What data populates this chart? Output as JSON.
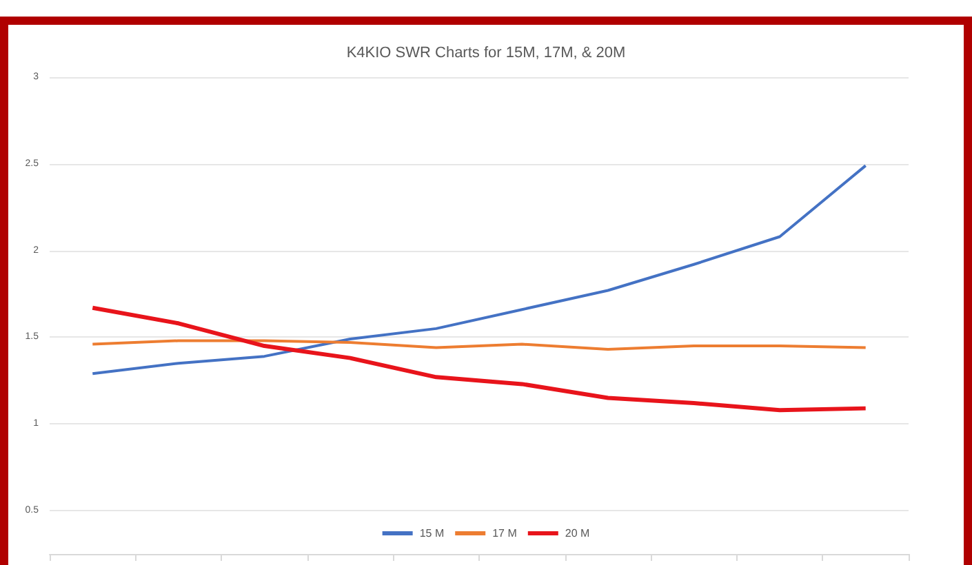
{
  "chart_data": {
    "type": "line",
    "title": "K4KIO SWR Charts for 15M, 17M, & 20M",
    "categories": [
      null,
      null,
      null,
      null,
      null,
      null,
      null,
      null,
      null,
      null
    ],
    "series": [
      {
        "name": "15 M",
        "color": "#4472c4",
        "values": [
          1.29,
          1.35,
          1.39,
          1.49,
          1.55,
          1.66,
          1.77,
          1.92,
          2.08,
          2.49
        ]
      },
      {
        "name": "17 M",
        "color": "#ed7d31",
        "values": [
          1.46,
          1.48,
          1.48,
          1.47,
          1.44,
          1.46,
          1.43,
          1.45,
          1.45,
          1.44
        ]
      },
      {
        "name": "20 M",
        "color": "#e8141b",
        "values": [
          1.67,
          1.58,
          1.45,
          1.38,
          1.27,
          1.23,
          1.15,
          1.12,
          1.08,
          1.09
        ]
      }
    ],
    "ylim": [
      0.25,
      3
    ],
    "yticks": [
      0.5,
      1,
      1.5,
      2,
      2.5,
      3
    ],
    "grid": "y",
    "legend": "bottom",
    "marker": "none",
    "line_style": "solid"
  }
}
